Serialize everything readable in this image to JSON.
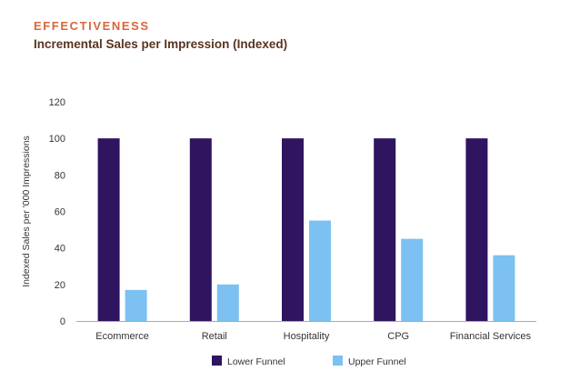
{
  "header": {
    "kicker": "EFFECTIVENESS",
    "title": "Incremental Sales per Impression (Indexed)"
  },
  "colors": {
    "kicker": "#d9663a",
    "title": "#5a3320",
    "lower_funnel": "#2f1460",
    "upper_funnel": "#7cc1f2",
    "axis_text": "#333333",
    "axis_line": "#aaaaaa"
  },
  "chart_data": {
    "type": "bar",
    "title": "Incremental Sales per Impression (Indexed)",
    "xlabel": "",
    "ylabel": "Indexed Sales per '000 Impressions",
    "ylim": [
      0,
      120
    ],
    "yticks": [
      0,
      20,
      40,
      60,
      80,
      100,
      120
    ],
    "grid": false,
    "legend_position": "bottom",
    "categories": [
      "Ecommerce",
      "Retail",
      "Hospitality",
      "CPG",
      "Financial Services"
    ],
    "series": [
      {
        "name": "Lower Funnel",
        "values": [
          100,
          100,
          100,
          100,
          100
        ]
      },
      {
        "name": "Upper Funnel",
        "values": [
          17,
          20,
          55,
          45,
          36
        ]
      }
    ]
  }
}
